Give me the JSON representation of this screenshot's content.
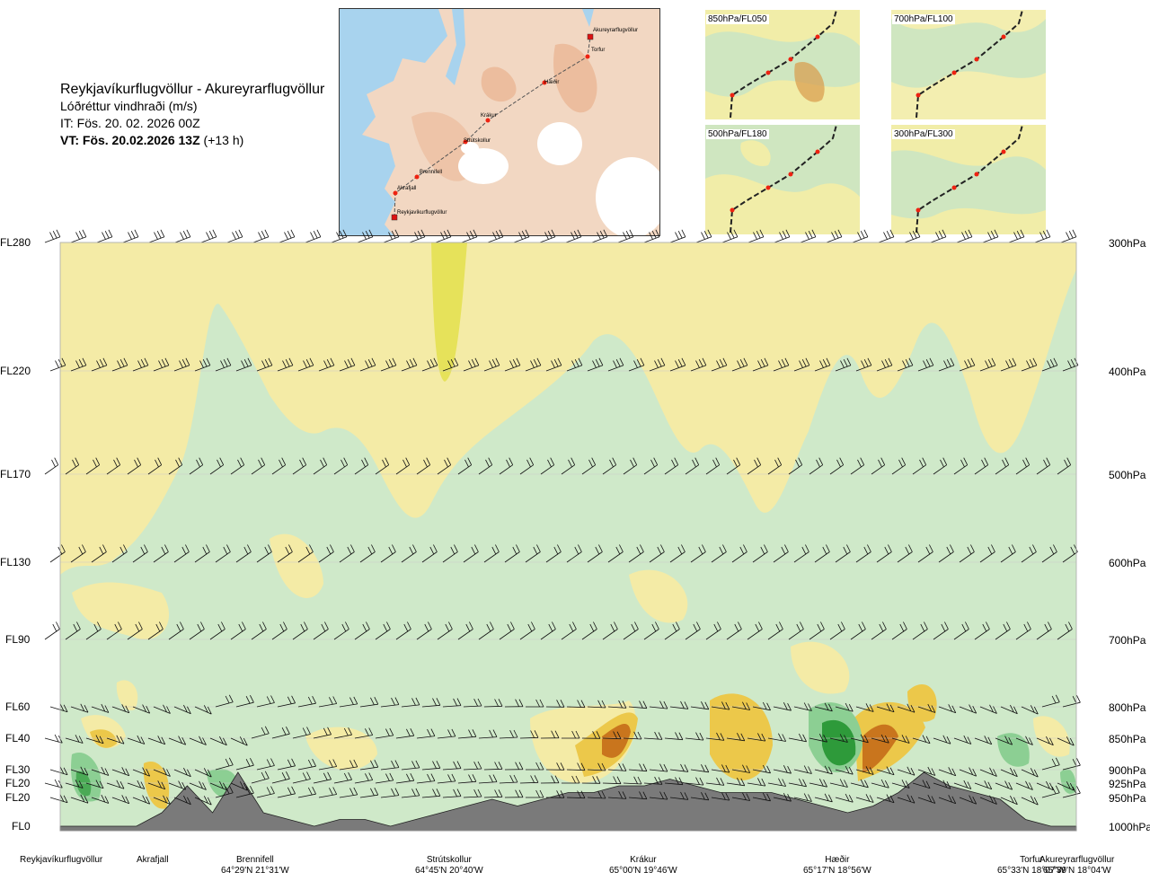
{
  "header": {
    "route": "Reykjavíkurflugvöllur - Akureyrarflugvöllur",
    "quantity": "Lóðréttur vindhraði (m/s)",
    "issue_time": "IT: Fös. 20. 02. 2026 00Z",
    "valid_time": "VT: Fös. 20.02.2026 13Z",
    "lead": "(+13 h)"
  },
  "map": {
    "points": [
      "Akureyrarflugvöllur",
      "Torfur",
      "Hæðir",
      "Krákur",
      "Strútskollur",
      "Brennifell",
      "Akrafjall",
      "Reykjavíkurflugvöllur"
    ]
  },
  "thumbnails": [
    {
      "label": "850hPa/FL050"
    },
    {
      "label": "700hPa/FL100"
    },
    {
      "label": "500hPa/FL180"
    },
    {
      "label": "300hPa/FL300"
    }
  ],
  "levels": [
    {
      "fl": "FL280",
      "hpa": "300hPa"
    },
    {
      "fl": "FL220",
      "hpa": "400hPa"
    },
    {
      "fl": "FL170",
      "hpa": "500hPa"
    },
    {
      "fl": "FL130",
      "hpa": "600hPa"
    },
    {
      "fl": "FL90",
      "hpa": "700hPa"
    },
    {
      "fl": "FL60",
      "hpa": "800hPa"
    },
    {
      "fl": "FL40",
      "hpa": "850hPa"
    },
    {
      "fl": "FL30",
      "hpa": "900hPa"
    },
    {
      "fl": "FL20",
      "hpa": "925hPa"
    },
    {
      "fl": "FL20",
      "hpa": "950hPa"
    },
    {
      "fl": "FL0",
      "hpa": "1000hPa"
    }
  ],
  "locations": [
    {
      "name": "Reykjavíkurflugvöllur",
      "coord": ""
    },
    {
      "name": "Akrafjall",
      "coord": ""
    },
    {
      "name": "Brennifell",
      "coord": "64°29'N 21°31'W"
    },
    {
      "name": "Strútskollur",
      "coord": "64°45'N 20°40'W"
    },
    {
      "name": "Krákur",
      "coord": "65°00'N 19°46'W"
    },
    {
      "name": "Hæðir",
      "coord": "65°17'N 18°56'W"
    },
    {
      "name": "Torfur",
      "coord": "65°33'N 18°07'W"
    },
    {
      "name": "Akureyrarflugvöllur",
      "coord": "65°39'N 18°04'W"
    }
  ],
  "colors": {
    "strong_down": "#2e9a3a",
    "moderate_down": "#8ccf93",
    "weak_down": "#cfe9c9",
    "near_zero": "#fbfbe6",
    "weak_up": "#f4eba6",
    "moderate_up": "#ecc84a",
    "strong_up": "#c9751d",
    "terrain": "#7a7a7a"
  },
  "chart_data": {
    "type": "heatmap",
    "y_levels_hpa": [
      300,
      400,
      500,
      600,
      700,
      800,
      850,
      900,
      925,
      950,
      1000
    ],
    "terrain_profile_samples": [
      0,
      0,
      0,
      0,
      2,
      6,
      2,
      8,
      2,
      1,
      0,
      1,
      1,
      0,
      1,
      2,
      3,
      4,
      3,
      4,
      5,
      5,
      6,
      6,
      7,
      6,
      5,
      5,
      5,
      4,
      3,
      2,
      3,
      5,
      8,
      6,
      5,
      4,
      1,
      0,
      0
    ]
  }
}
